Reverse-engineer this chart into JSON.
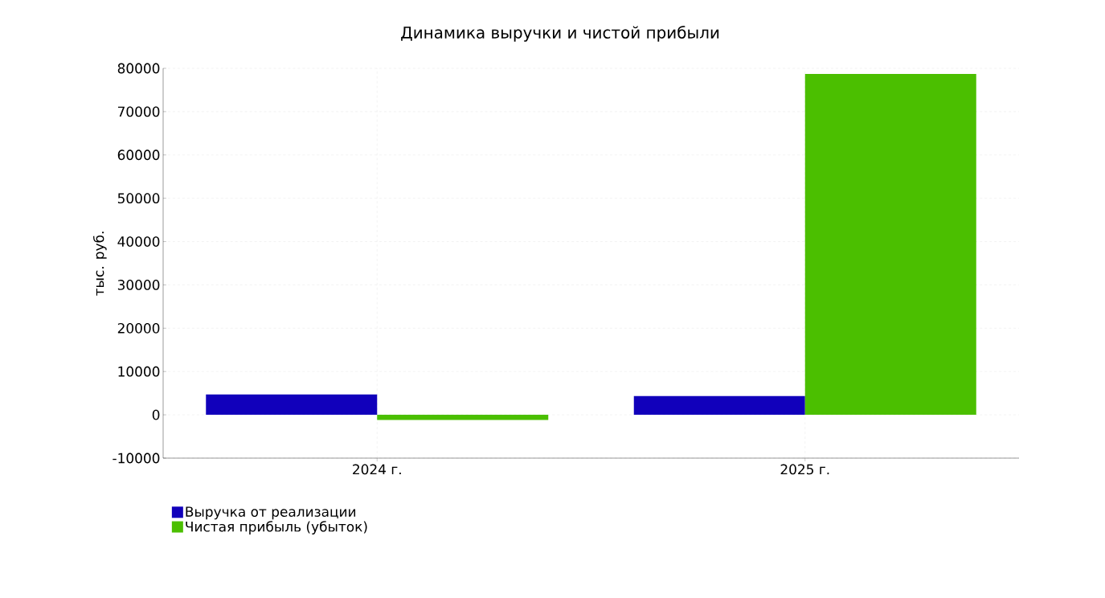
{
  "chart_data": {
    "type": "bar",
    "title": "Динамика выручки и чистой прибыли",
    "ylabel": "тыс. руб.",
    "categories": [
      "2024 г.",
      "2025 г."
    ],
    "series": [
      {
        "name": "Выручка от реализации",
        "color": "#1100bb",
        "values": [
          4700,
          4350
        ]
      },
      {
        "name": "Чистая прибыль (убыток)",
        "color": "#4bbf00",
        "values": [
          -1200,
          78700
        ]
      }
    ],
    "ylim": [
      -10000,
      80000
    ],
    "yticks": [
      -10000,
      0,
      10000,
      20000,
      30000,
      40000,
      50000,
      60000,
      70000,
      80000
    ],
    "grid": true,
    "legend": "bottom left"
  }
}
